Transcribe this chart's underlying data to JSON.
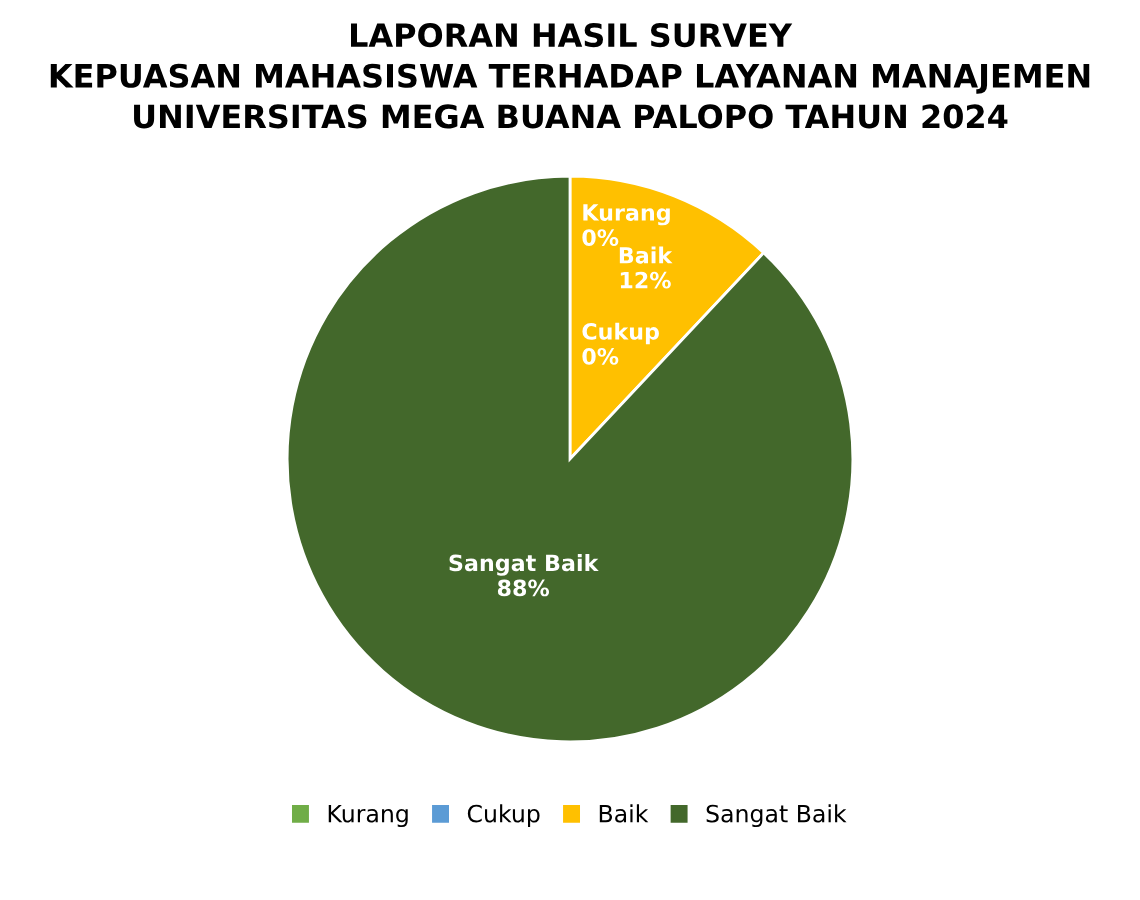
{
  "chart_data": {
    "type": "pie",
    "title": "LAPORAN HASIL SURVEY\nKEPUASAN MAHASISWA TERHADAP LAYANAN MANAJEMEN\nUNIVERSITAS MEGA BUANA PALOPO TAHUN 2024",
    "categories": [
      "Kurang",
      "Cukup",
      "Baik",
      "Sangat Baik"
    ],
    "values": [
      0,
      0,
      12,
      88
    ],
    "colors": [
      "#70ad47",
      "#5b9bd5",
      "#ffc000",
      "#43682b"
    ],
    "value_labels": [
      "0%",
      "0%",
      "12%",
      "88%"
    ],
    "legend": "bottom"
  }
}
